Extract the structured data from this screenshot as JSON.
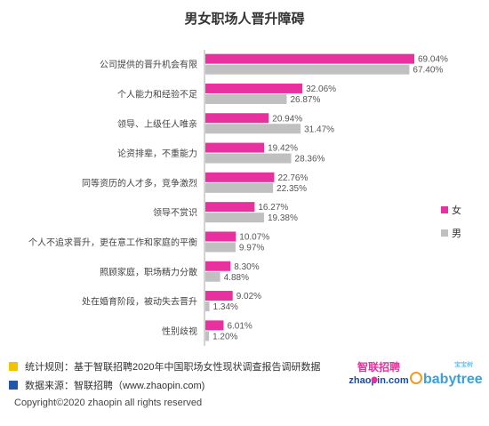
{
  "chart_data": {
    "type": "bar",
    "orientation": "horizontal",
    "title": "男女职场人晋升障碍",
    "categories": [
      "公司提供的晋升机会有限",
      "个人能力和经验不足",
      "领导、上级任人唯亲",
      "论资排辈，不重能力",
      "同等资历的人才多，竞争激烈",
      "领导不赏识",
      "个人不追求晋升，更在意工作和家庭的平衡",
      "照顾家庭，职场精力分散",
      "处在婚育阶段，被动失去晋升",
      "性别歧视"
    ],
    "series": [
      {
        "name": "女",
        "color": "#e8309e",
        "values": [
          69.04,
          32.06,
          20.94,
          19.42,
          22.76,
          16.27,
          10.07,
          8.3,
          9.02,
          6.01
        ],
        "labels": [
          "69.04%",
          "32.06%",
          "20.94%",
          "19.42%",
          "22.76%",
          "16.27%",
          "10.07%",
          "8.30%",
          "9.02%",
          "6.01%"
        ]
      },
      {
        "name": "男",
        "color": "#c0c0c0",
        "values": [
          67.4,
          26.87,
          31.47,
          28.36,
          22.35,
          19.38,
          9.97,
          4.88,
          1.34,
          1.2
        ],
        "labels": [
          "67.40%",
          "26.87%",
          "31.47%",
          "28.36%",
          "22.35%",
          "19.38%",
          "9.97%",
          "4.88%",
          "1.34%",
          "1.20%"
        ]
      }
    ],
    "xlim": [
      0,
      75
    ],
    "grid": false,
    "legend_position": "right"
  },
  "footer": {
    "rule_text": "统计规则：基于智联招聘2020年中国职场女性现状调查报告调研数据",
    "source_text": "数据来源：智联招聘（www.zhaopin.com)",
    "copyright_text": "Copyright©2020 zhaopin all rights reserved",
    "rule_color": "#f2c400",
    "source_color": "#2157a6"
  },
  "logos": {
    "zhaopin_top": "智联招聘",
    "zhaopin_bottom": "zhaopin.com",
    "babytree_small": "宝宝树",
    "babytree_main": "babytree"
  }
}
